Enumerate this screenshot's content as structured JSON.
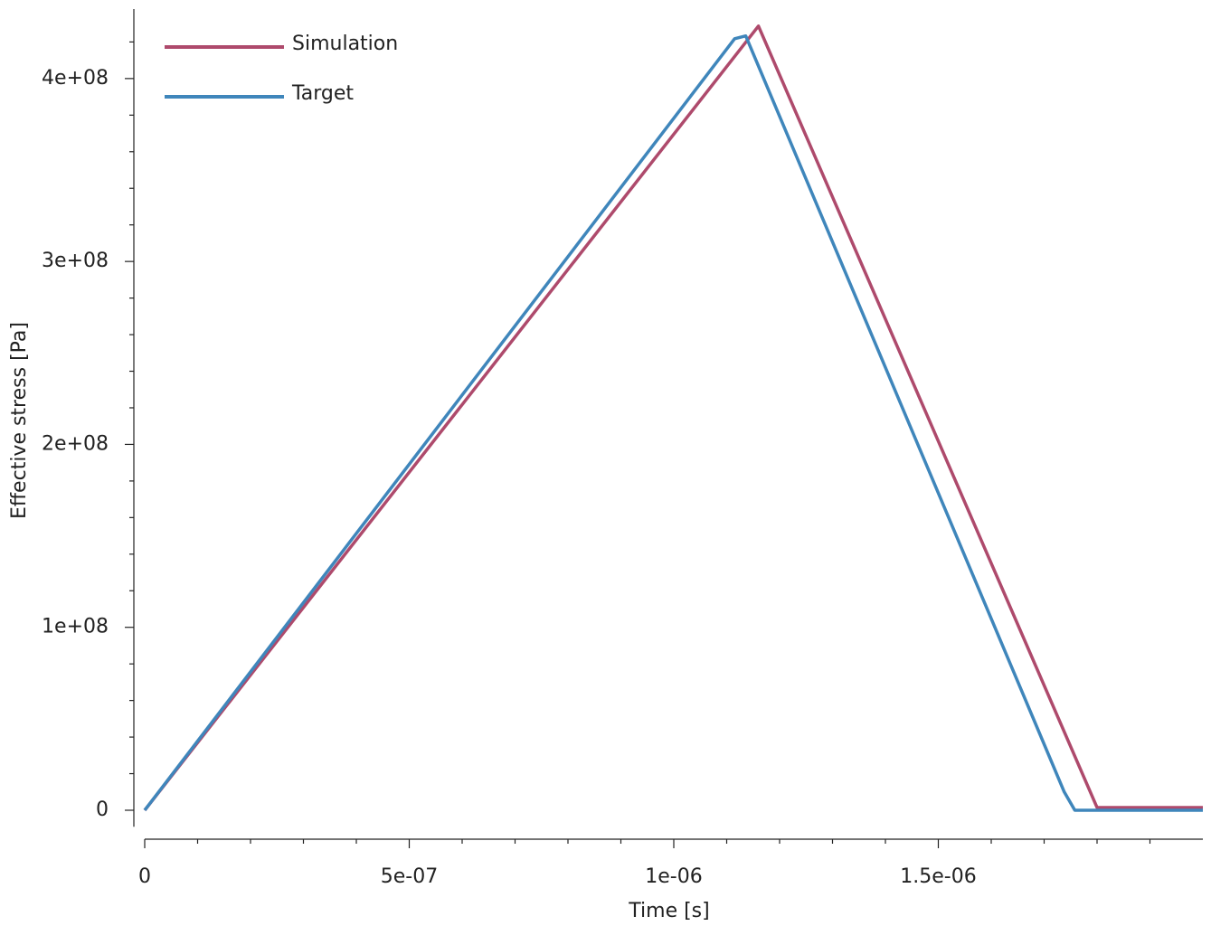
{
  "chart_data": {
    "type": "line",
    "xlabel": "Time [s]",
    "ylabel": "Effective stress [Pa]",
    "xlim": [
      0,
      2e-06
    ],
    "ylim": [
      -9000000,
      438000000
    ],
    "xticks": [
      0,
      {
        "value": 5e-07,
        "label": "5e-07"
      },
      {
        "value": 1e-06,
        "label": "1e-06"
      },
      {
        "value": 1.5e-06,
        "label": "1.5e-06"
      }
    ],
    "yticks": [
      0,
      {
        "value": 100000000,
        "label": "1e+08"
      },
      {
        "value": 200000000,
        "label": "2e+08"
      },
      {
        "value": 300000000,
        "label": "3e+08"
      },
      {
        "value": 400000000,
        "label": "4e+08"
      }
    ],
    "xminorticks": [
      1e-07,
      2e-07,
      3e-07,
      4e-07,
      6e-07,
      7e-07,
      8e-07,
      9e-07,
      1.1e-06,
      1.2e-06,
      1.3e-06,
      1.4e-06,
      1.6e-06,
      1.7e-06,
      1.8e-06,
      1.9e-06
    ],
    "yminorticks": [
      20000000,
      40000000,
      60000000,
      80000000,
      120000000,
      140000000,
      160000000,
      180000000,
      220000000,
      240000000,
      260000000,
      280000000,
      320000000,
      340000000,
      360000000,
      380000000,
      420000000
    ],
    "legend": "upper left",
    "series": [
      {
        "name": "Simulation",
        "color": "#ae4a6c",
        "x": [
          0,
          1.16e-06,
          1.8e-06,
          2e-06
        ],
        "values": [
          0,
          428700000,
          1500000,
          1500000
        ]
      },
      {
        "name": "Target",
        "color": "#3f86bb",
        "x": [
          0,
          1.115e-06,
          1.136e-06,
          1.738e-06,
          1.758e-06,
          2e-06
        ],
        "values": [
          0,
          421800000,
          423300000,
          10000000,
          0,
          0
        ]
      }
    ]
  }
}
